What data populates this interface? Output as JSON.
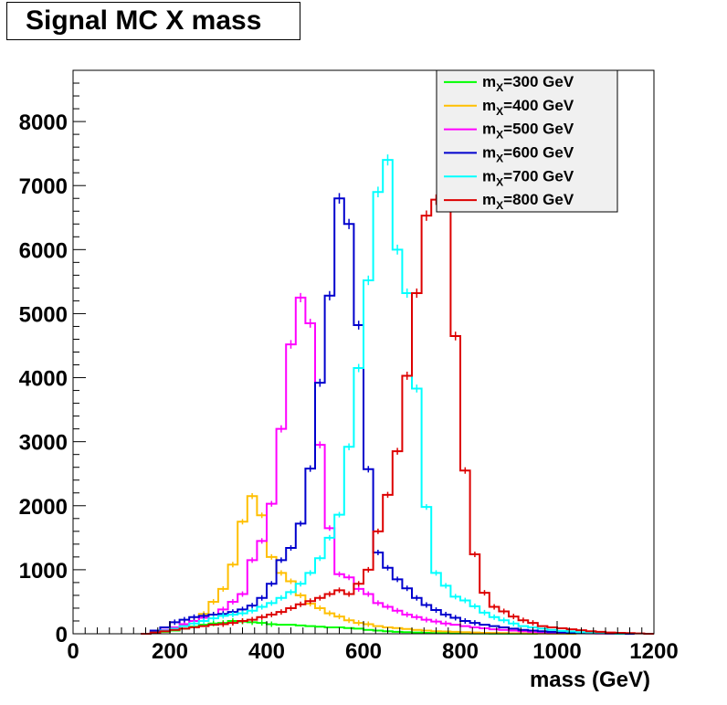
{
  "title": "Signal MC X mass",
  "chart_data": {
    "type": "line",
    "title": "Signal MC X mass",
    "xlabel": "mass (GeV)",
    "ylabel": "",
    "xlim": [
      0,
      1200
    ],
    "ylim": [
      0,
      8800
    ],
    "x_ticks": [
      0,
      200,
      400,
      600,
      800,
      1000,
      1200
    ],
    "y_ticks": [
      0,
      1000,
      2000,
      3000,
      4000,
      5000,
      6000,
      7000,
      8000
    ],
    "grid": false,
    "legend_position": "top-right",
    "bin_width": 20,
    "series": [
      {
        "name": "m_X=300 GeV",
        "label_main": "m",
        "label_sub": "X",
        "label_rest": "=300 GeV",
        "color": "#00ff00",
        "bins": [
          [
            140,
            0
          ],
          [
            160,
            20
          ],
          [
            180,
            30
          ],
          [
            200,
            50
          ],
          [
            220,
            80
          ],
          [
            240,
            110
          ],
          [
            260,
            140
          ],
          [
            280,
            160
          ],
          [
            300,
            170
          ],
          [
            320,
            200
          ],
          [
            340,
            190
          ],
          [
            360,
            180
          ],
          [
            380,
            170
          ],
          [
            400,
            150
          ],
          [
            420,
            140
          ],
          [
            440,
            140
          ],
          [
            460,
            130
          ],
          [
            480,
            120
          ],
          [
            500,
            110
          ],
          [
            520,
            100
          ],
          [
            540,
            100
          ],
          [
            560,
            90
          ],
          [
            580,
            80
          ],
          [
            600,
            60
          ],
          [
            620,
            50
          ],
          [
            640,
            40
          ],
          [
            660,
            30
          ],
          [
            680,
            25
          ],
          [
            700,
            20
          ],
          [
            720,
            15
          ],
          [
            740,
            10
          ],
          [
            760,
            8
          ],
          [
            780,
            5
          ],
          [
            800,
            5
          ],
          [
            820,
            4
          ],
          [
            840,
            3
          ],
          [
            860,
            2
          ],
          [
            880,
            2
          ],
          [
            900,
            1
          ],
          [
            920,
            1
          ],
          [
            940,
            0
          ]
        ]
      },
      {
        "name": "m_X=400 GeV",
        "label_main": "m",
        "label_sub": "X",
        "label_rest": "=400 GeV",
        "color": "#ffbf00",
        "bins": [
          [
            140,
            0
          ],
          [
            160,
            20
          ],
          [
            180,
            40
          ],
          [
            200,
            80
          ],
          [
            220,
            120
          ],
          [
            240,
            200
          ],
          [
            260,
            310
          ],
          [
            280,
            500
          ],
          [
            300,
            700
          ],
          [
            320,
            1080
          ],
          [
            340,
            1750
          ],
          [
            360,
            2150
          ],
          [
            380,
            1850
          ],
          [
            400,
            1200
          ],
          [
            420,
            950
          ],
          [
            440,
            820
          ],
          [
            460,
            600
          ],
          [
            480,
            470
          ],
          [
            500,
            400
          ],
          [
            520,
            320
          ],
          [
            540,
            270
          ],
          [
            560,
            210
          ],
          [
            580,
            170
          ],
          [
            600,
            150
          ],
          [
            620,
            120
          ],
          [
            640,
            100
          ],
          [
            660,
            90
          ],
          [
            680,
            75
          ],
          [
            700,
            60
          ],
          [
            720,
            50
          ],
          [
            740,
            40
          ],
          [
            760,
            35
          ],
          [
            780,
            30
          ],
          [
            800,
            25
          ],
          [
            820,
            20
          ],
          [
            840,
            15
          ],
          [
            860,
            12
          ],
          [
            880,
            10
          ],
          [
            900,
            8
          ],
          [
            920,
            5
          ],
          [
            940,
            4
          ],
          [
            960,
            3
          ],
          [
            980,
            2
          ],
          [
            1000,
            1
          ],
          [
            1020,
            0
          ]
        ]
      },
      {
        "name": "m_X=500 GeV",
        "label_main": "m",
        "label_sub": "X",
        "label_rest": "=500 GeV",
        "color": "#ff00ff",
        "bins": [
          [
            140,
            0
          ],
          [
            160,
            20
          ],
          [
            180,
            60
          ],
          [
            200,
            100
          ],
          [
            220,
            150
          ],
          [
            240,
            200
          ],
          [
            260,
            250
          ],
          [
            280,
            300
          ],
          [
            300,
            380
          ],
          [
            320,
            500
          ],
          [
            340,
            620
          ],
          [
            360,
            1150
          ],
          [
            380,
            1450
          ],
          [
            400,
            2030
          ],
          [
            420,
            3200
          ],
          [
            440,
            4520
          ],
          [
            460,
            5250
          ],
          [
            480,
            4850
          ],
          [
            500,
            2950
          ],
          [
            520,
            1650
          ],
          [
            540,
            930
          ],
          [
            560,
            880
          ],
          [
            580,
            700
          ],
          [
            600,
            620
          ],
          [
            620,
            480
          ],
          [
            640,
            420
          ],
          [
            660,
            360
          ],
          [
            680,
            300
          ],
          [
            700,
            260
          ],
          [
            720,
            220
          ],
          [
            740,
            190
          ],
          [
            760,
            160
          ],
          [
            780,
            140
          ],
          [
            800,
            120
          ],
          [
            820,
            100
          ],
          [
            840,
            85
          ],
          [
            860,
            70
          ],
          [
            880,
            60
          ],
          [
            900,
            50
          ],
          [
            920,
            40
          ],
          [
            940,
            30
          ],
          [
            960,
            25
          ],
          [
            980,
            20
          ],
          [
            1000,
            15
          ],
          [
            1020,
            10
          ],
          [
            1040,
            8
          ],
          [
            1060,
            5
          ],
          [
            1080,
            3
          ],
          [
            1100,
            2
          ],
          [
            1120,
            0
          ]
        ]
      },
      {
        "name": "m_X=600 GeV",
        "label_main": "m",
        "label_sub": "X",
        "label_rest": "=600 GeV",
        "color": "#0000cd",
        "bins": [
          [
            140,
            0
          ],
          [
            160,
            50
          ],
          [
            180,
            100
          ],
          [
            200,
            180
          ],
          [
            220,
            220
          ],
          [
            240,
            260
          ],
          [
            260,
            280
          ],
          [
            280,
            300
          ],
          [
            300,
            310
          ],
          [
            320,
            340
          ],
          [
            340,
            380
          ],
          [
            360,
            440
          ],
          [
            380,
            560
          ],
          [
            400,
            780
          ],
          [
            420,
            1150
          ],
          [
            440,
            1340
          ],
          [
            460,
            1720
          ],
          [
            480,
            2580
          ],
          [
            500,
            3920
          ],
          [
            520,
            5280
          ],
          [
            540,
            6800
          ],
          [
            560,
            6400
          ],
          [
            580,
            4820
          ],
          [
            600,
            2570
          ],
          [
            620,
            1270
          ],
          [
            640,
            1030
          ],
          [
            660,
            850
          ],
          [
            680,
            710
          ],
          [
            700,
            560
          ],
          [
            720,
            450
          ],
          [
            740,
            370
          ],
          [
            760,
            300
          ],
          [
            780,
            250
          ],
          [
            800,
            200
          ],
          [
            820,
            170
          ],
          [
            840,
            140
          ],
          [
            860,
            120
          ],
          [
            880,
            100
          ],
          [
            900,
            80
          ],
          [
            920,
            60
          ],
          [
            940,
            50
          ],
          [
            960,
            40
          ],
          [
            980,
            30
          ],
          [
            1000,
            25
          ],
          [
            1020,
            20
          ],
          [
            1040,
            15
          ],
          [
            1060,
            10
          ],
          [
            1080,
            8
          ],
          [
            1100,
            5
          ],
          [
            1120,
            3
          ],
          [
            1140,
            0
          ]
        ]
      },
      {
        "name": "m_X=700 GeV",
        "label_main": "m",
        "label_sub": "X",
        "label_rest": "=700 GeV",
        "color": "#00ffff",
        "bins": [
          [
            140,
            0
          ],
          [
            160,
            20
          ],
          [
            180,
            50
          ],
          [
            200,
            80
          ],
          [
            220,
            120
          ],
          [
            240,
            160
          ],
          [
            260,
            200
          ],
          [
            280,
            240
          ],
          [
            300,
            280
          ],
          [
            320,
            300
          ],
          [
            340,
            320
          ],
          [
            360,
            360
          ],
          [
            380,
            420
          ],
          [
            400,
            480
          ],
          [
            420,
            560
          ],
          [
            440,
            650
          ],
          [
            460,
            780
          ],
          [
            480,
            950
          ],
          [
            500,
            1180
          ],
          [
            520,
            1500
          ],
          [
            540,
            1860
          ],
          [
            560,
            2920
          ],
          [
            580,
            4150
          ],
          [
            600,
            5520
          ],
          [
            620,
            6900
          ],
          [
            640,
            7400
          ],
          [
            660,
            6000
          ],
          [
            680,
            5320
          ],
          [
            700,
            3830
          ],
          [
            720,
            1980
          ],
          [
            740,
            950
          ],
          [
            760,
            750
          ],
          [
            780,
            580
          ],
          [
            800,
            520
          ],
          [
            820,
            430
          ],
          [
            840,
            330
          ],
          [
            860,
            260
          ],
          [
            880,
            210
          ],
          [
            900,
            160
          ],
          [
            920,
            120
          ],
          [
            940,
            100
          ],
          [
            960,
            80
          ],
          [
            980,
            60
          ],
          [
            1000,
            45
          ],
          [
            1020,
            35
          ],
          [
            1040,
            25
          ],
          [
            1060,
            15
          ],
          [
            1080,
            10
          ],
          [
            1100,
            5
          ],
          [
            1120,
            0
          ]
        ]
      },
      {
        "name": "m_X=800 GeV",
        "label_main": "m",
        "label_sub": "X",
        "label_rest": "=800 GeV",
        "color": "#dd0000",
        "bins": [
          [
            140,
            0
          ],
          [
            160,
            20
          ],
          [
            180,
            40
          ],
          [
            200,
            60
          ],
          [
            220,
            80
          ],
          [
            240,
            100
          ],
          [
            260,
            120
          ],
          [
            280,
            140
          ],
          [
            300,
            150
          ],
          [
            320,
            170
          ],
          [
            340,
            200
          ],
          [
            360,
            220
          ],
          [
            380,
            260
          ],
          [
            400,
            300
          ],
          [
            420,
            340
          ],
          [
            440,
            400
          ],
          [
            460,
            460
          ],
          [
            480,
            510
          ],
          [
            500,
            560
          ],
          [
            520,
            620
          ],
          [
            540,
            680
          ],
          [
            560,
            620
          ],
          [
            580,
            780
          ],
          [
            600,
            1000
          ],
          [
            620,
            1600
          ],
          [
            640,
            2170
          ],
          [
            660,
            2850
          ],
          [
            680,
            4030
          ],
          [
            700,
            5320
          ],
          [
            720,
            6530
          ],
          [
            740,
            6780
          ],
          [
            760,
            7200
          ],
          [
            780,
            4650
          ],
          [
            800,
            2550
          ],
          [
            820,
            1240
          ],
          [
            840,
            640
          ],
          [
            860,
            420
          ],
          [
            880,
            350
          ],
          [
            900,
            270
          ],
          [
            920,
            210
          ],
          [
            940,
            170
          ],
          [
            960,
            120
          ],
          [
            980,
            100
          ],
          [
            1000,
            85
          ],
          [
            1020,
            70
          ],
          [
            1040,
            55
          ],
          [
            1060,
            40
          ],
          [
            1080,
            30
          ],
          [
            1100,
            20
          ],
          [
            1120,
            15
          ],
          [
            1140,
            10
          ],
          [
            1160,
            5
          ],
          [
            1180,
            0
          ]
        ]
      }
    ]
  }
}
